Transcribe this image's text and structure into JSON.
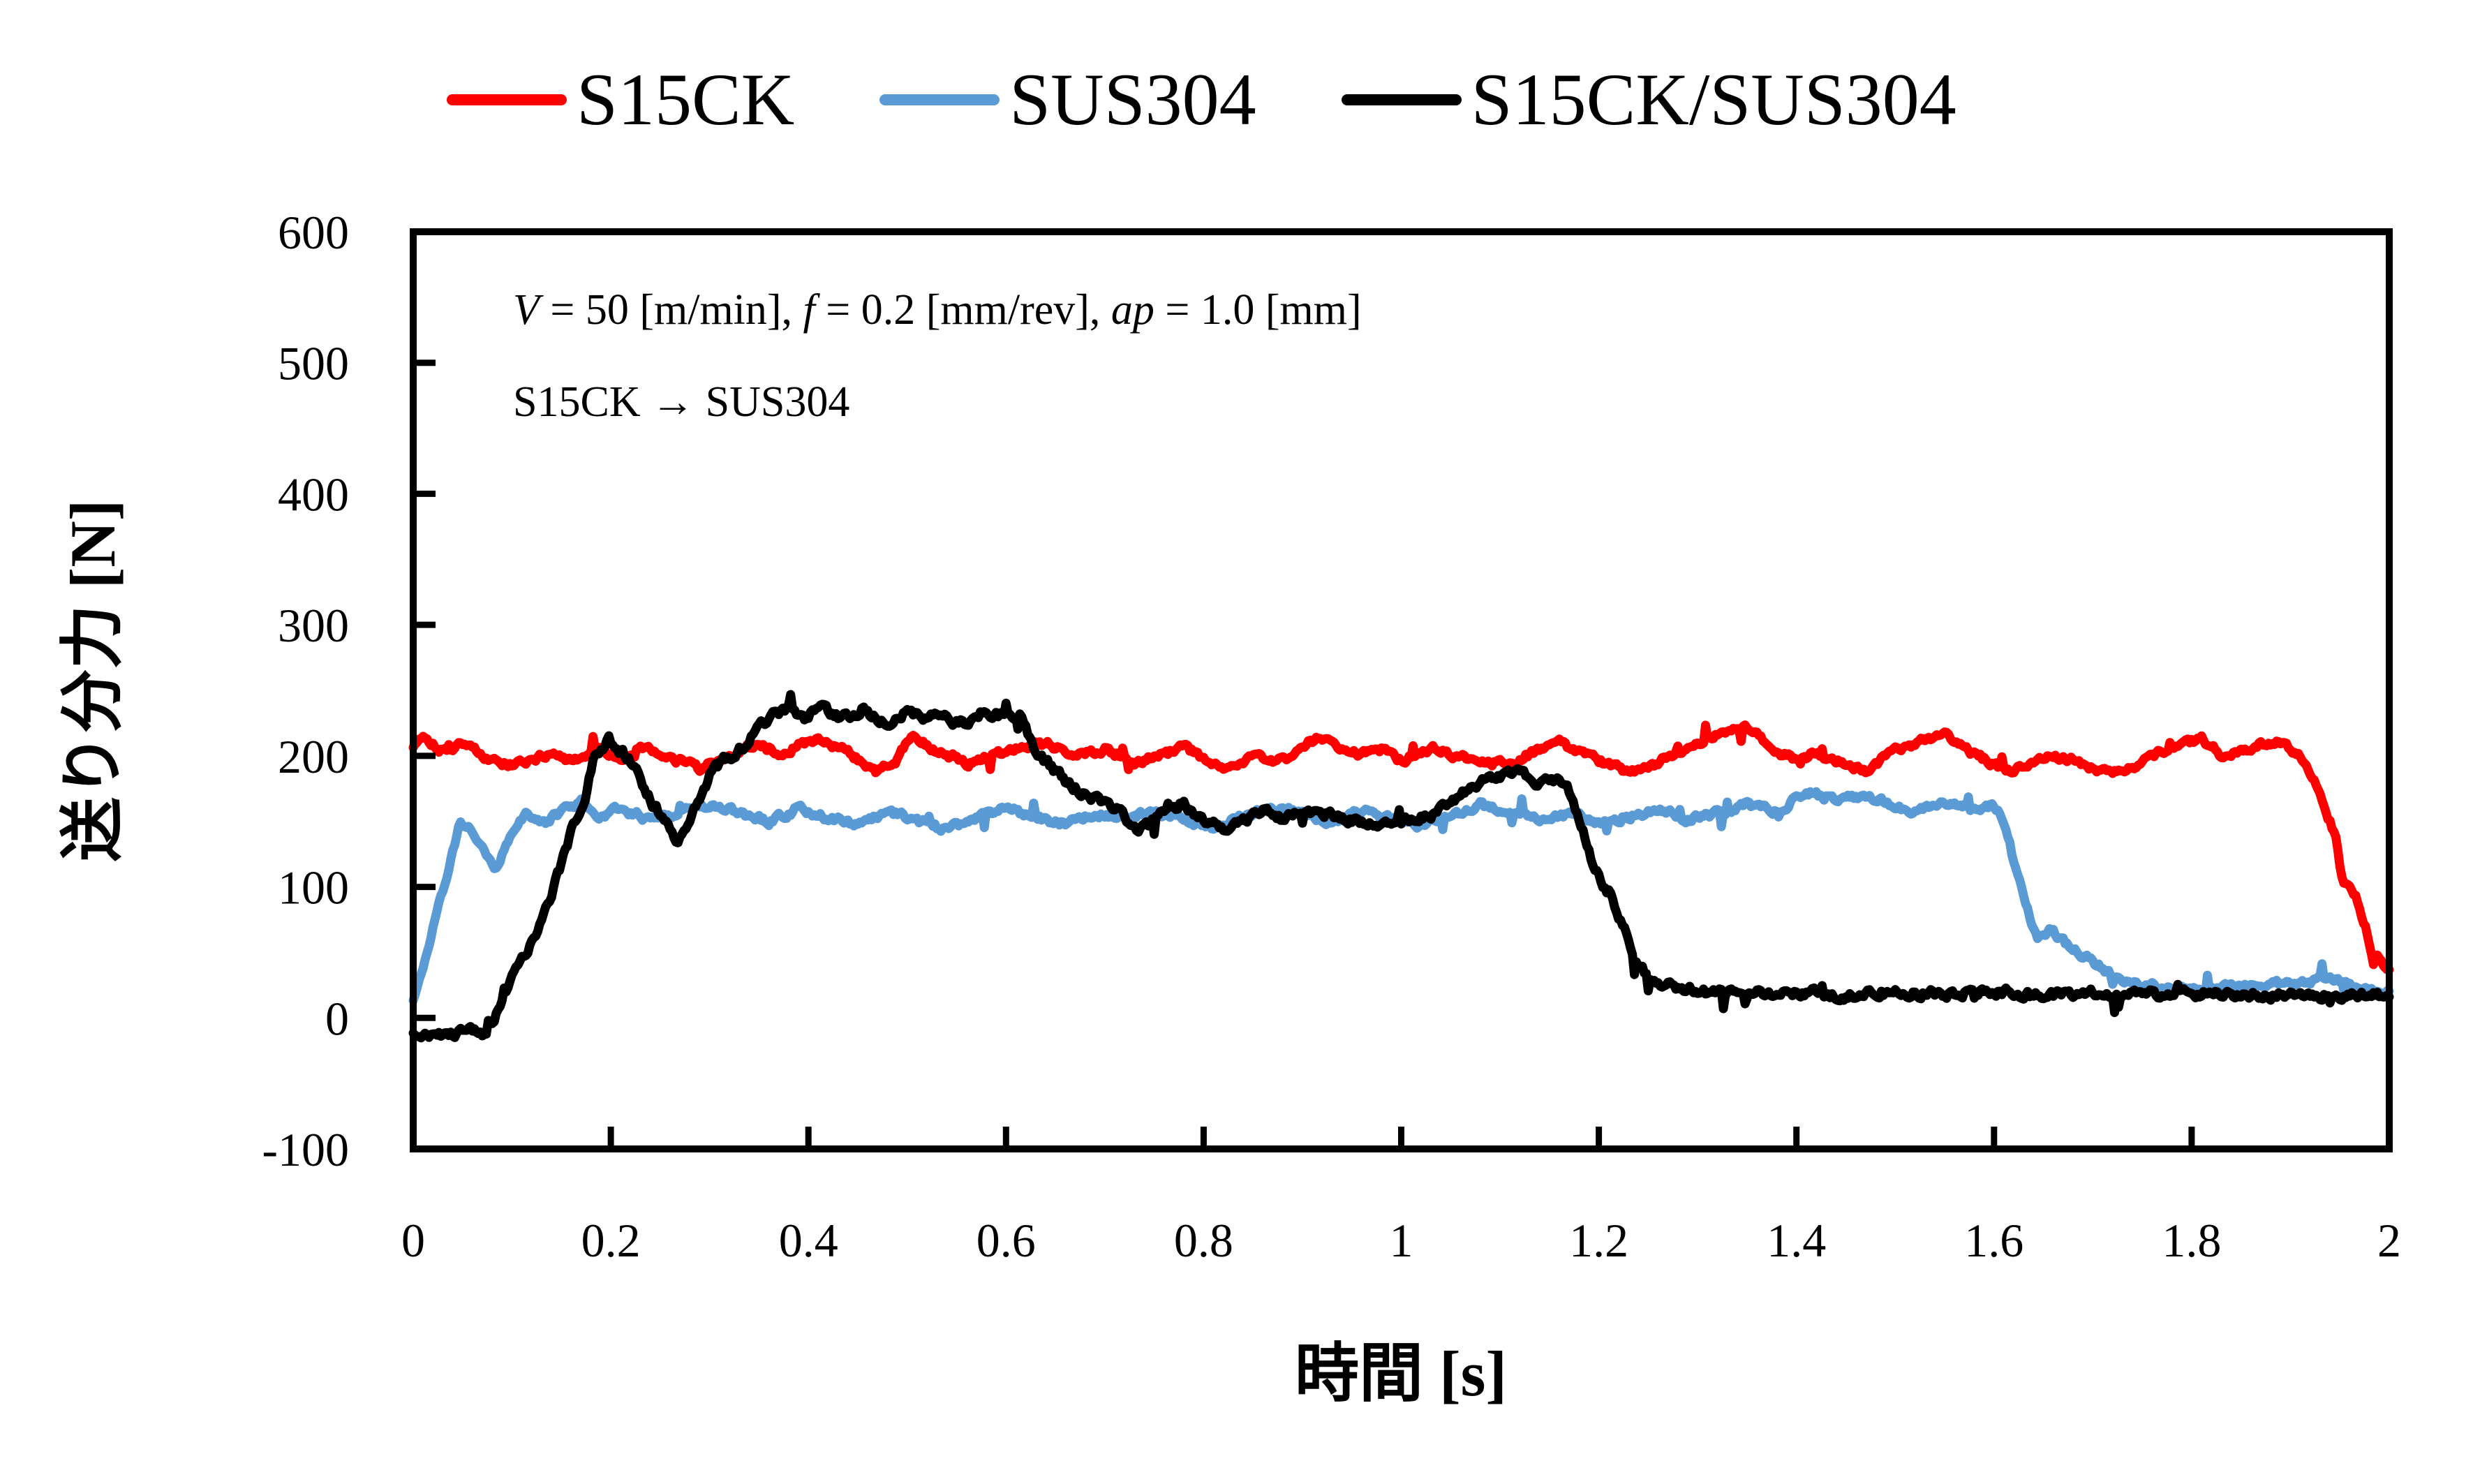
{
  "figure": {
    "background": "#FFFFFF",
    "frame_color": "#000000"
  },
  "legend": {
    "items": [
      {
        "label": "S15CK",
        "color": "#FF0000"
      },
      {
        "label": "SUS304",
        "color": "#5B9BD5"
      },
      {
        "label": "S15CK/SUS304",
        "color": "#000000"
      }
    ]
  },
  "annotation": {
    "v_var": "V",
    "v_rest": " = 50 [m/min], ",
    "f_var": "f",
    "f_rest": " = 0.2 [mm/rev], ",
    "ap_var": "ap",
    "ap_rest": " = 1.0 [mm]",
    "line2": "S15CK → SUS304"
  },
  "axes": {
    "x": {
      "title": "時間 [s]",
      "min": 0,
      "max": 2,
      "tick_values": [
        0,
        0.2,
        0.4,
        0.6,
        0.8,
        1,
        1.2,
        1.4,
        1.6,
        1.8,
        2
      ],
      "tick_labels": [
        "0",
        "0.2",
        "0.4",
        "0.6",
        "0.8",
        "1",
        "1.2",
        "1.4",
        "1.6",
        "1.8",
        "2"
      ]
    },
    "y": {
      "title": "送り分力 [N]",
      "min": -100,
      "max": 600,
      "tick_values": [
        600,
        500,
        400,
        300,
        200,
        100,
        0,
        -100
      ],
      "tick_labels": [
        "600",
        "500",
        "400",
        "300",
        "200",
        "100",
        "0",
        "-100"
      ]
    }
  },
  "chart_data": {
    "type": "line",
    "title": "",
    "xlabel": "時間 [s]",
    "ylabel": "送り分力 [N]",
    "xlim": [
      0,
      2
    ],
    "ylim": [
      -100,
      600
    ],
    "grid": false,
    "legend_position": "top",
    "series": [
      {
        "name": "S15CK",
        "color": "#FF0000",
        "points": [
          [
            0,
            208
          ],
          [
            0.01,
            216
          ],
          [
            0.03,
            204
          ],
          [
            0.05,
            210
          ],
          [
            0.08,
            196
          ],
          [
            0.1,
            192
          ],
          [
            0.13,
            200
          ],
          [
            0.16,
            197
          ],
          [
            0.19,
            205
          ],
          [
            0.21,
            196
          ],
          [
            0.23,
            208
          ],
          [
            0.26,
            199
          ],
          [
            0.29,
            190
          ],
          [
            0.32,
            200
          ],
          [
            0.35,
            210
          ],
          [
            0.37,
            202
          ],
          [
            0.41,
            214
          ],
          [
            0.44,
            203
          ],
          [
            0.47,
            188
          ],
          [
            0.49,
            198
          ],
          [
            0.505,
            216
          ],
          [
            0.53,
            204
          ],
          [
            0.56,
            193
          ],
          [
            0.59,
            202
          ],
          [
            0.62,
            206
          ],
          [
            0.64,
            210
          ],
          [
            0.67,
            199
          ],
          [
            0.7,
            205
          ],
          [
            0.73,
            195
          ],
          [
            0.76,
            201
          ],
          [
            0.78,
            207
          ],
          [
            0.8,
            198
          ],
          [
            0.82,
            191
          ],
          [
            0.85,
            199
          ],
          [
            0.88,
            196
          ],
          [
            0.9,
            208
          ],
          [
            0.92,
            214
          ],
          [
            0.95,
            201
          ],
          [
            0.98,
            205
          ],
          [
            1.0,
            196
          ],
          [
            1.03,
            206
          ],
          [
            1.06,
            199
          ],
          [
            1.09,
            195
          ],
          [
            1.12,
            198
          ],
          [
            1.14,
            204
          ],
          [
            1.16,
            210
          ],
          [
            1.19,
            200
          ],
          [
            1.22,
            190
          ],
          [
            1.24,
            187
          ],
          [
            1.27,
            199
          ],
          [
            1.3,
            210
          ],
          [
            1.33,
            220
          ],
          [
            1.35,
            222
          ],
          [
            1.38,
            204
          ],
          [
            1.4,
            196
          ],
          [
            1.42,
            203
          ],
          [
            1.45,
            193
          ],
          [
            1.47,
            189
          ],
          [
            1.5,
            204
          ],
          [
            1.53,
            212
          ],
          [
            1.55,
            217
          ],
          [
            1.58,
            201
          ],
          [
            1.6,
            194
          ],
          [
            1.62,
            188
          ],
          [
            1.65,
            200
          ],
          [
            1.68,
            197
          ],
          [
            1.71,
            188
          ],
          [
            1.73,
            186
          ],
          [
            1.76,
            200
          ],
          [
            1.79,
            210
          ],
          [
            1.81,
            213
          ],
          [
            1.83,
            201
          ],
          [
            1.85,
            204
          ],
          [
            1.87,
            209
          ],
          [
            1.89,
            211
          ],
          [
            1.913,
            197
          ],
          [
            1.932,
            167
          ],
          [
            1.946,
            138
          ],
          [
            1.953,
            102
          ],
          [
            1.966,
            94
          ],
          [
            1.977,
            67
          ],
          [
            1.984,
            42
          ],
          [
            1.989,
            48
          ],
          [
            1.997,
            36
          ],
          [
            2.0,
            34
          ]
        ]
      },
      {
        "name": "SUS304",
        "color": "#5B9BD5",
        "points": [
          [
            0,
            15
          ],
          [
            0.012,
            45
          ],
          [
            0.022,
            75
          ],
          [
            0.031,
            100
          ],
          [
            0.048,
            150
          ],
          [
            0.06,
            141
          ],
          [
            0.072,
            126
          ],
          [
            0.083,
            110
          ],
          [
            0.095,
            136
          ],
          [
            0.115,
            159
          ],
          [
            0.129,
            147
          ],
          [
            0.15,
            157
          ],
          [
            0.17,
            164
          ],
          [
            0.19,
            154
          ],
          [
            0.21,
            160
          ],
          [
            0.24,
            151
          ],
          [
            0.27,
            158
          ],
          [
            0.3,
            163
          ],
          [
            0.33,
            156
          ],
          [
            0.36,
            150
          ],
          [
            0.39,
            160
          ],
          [
            0.42,
            153
          ],
          [
            0.45,
            147
          ],
          [
            0.48,
            158
          ],
          [
            0.51,
            151
          ],
          [
            0.54,
            143
          ],
          [
            0.57,
            154
          ],
          [
            0.6,
            161
          ],
          [
            0.63,
            153
          ],
          [
            0.66,
            148
          ],
          [
            0.69,
            156
          ],
          [
            0.72,
            151
          ],
          [
            0.75,
            158
          ],
          [
            0.78,
            151
          ],
          [
            0.81,
            145
          ],
          [
            0.84,
            153
          ],
          [
            0.87,
            161
          ],
          [
            0.9,
            156
          ],
          [
            0.93,
            150
          ],
          [
            0.96,
            158
          ],
          [
            0.99,
            153
          ],
          [
            1.02,
            147
          ],
          [
            1.05,
            155
          ],
          [
            1.08,
            163
          ],
          [
            1.11,
            158
          ],
          [
            1.14,
            150
          ],
          [
            1.17,
            156
          ],
          [
            1.2,
            148
          ],
          [
            1.23,
            153
          ],
          [
            1.26,
            159
          ],
          [
            1.29,
            151
          ],
          [
            1.32,
            156
          ],
          [
            1.35,
            163
          ],
          [
            1.38,
            158
          ],
          [
            1.41,
            172
          ],
          [
            1.44,
            167
          ],
          [
            1.47,
            169
          ],
          [
            1.5,
            162
          ],
          [
            1.52,
            157
          ],
          [
            1.55,
            166
          ],
          [
            1.58,
            160
          ],
          [
            1.6,
            162
          ],
          [
            1.608,
            152
          ],
          [
            1.624,
            110
          ],
          [
            1.632,
            88
          ],
          [
            1.644,
            60
          ],
          [
            1.657,
            68
          ],
          [
            1.673,
            57
          ],
          [
            1.685,
            51
          ],
          [
            1.705,
            40
          ],
          [
            1.717,
            34
          ],
          [
            1.737,
            27
          ],
          [
            1.77,
            23
          ],
          [
            1.81,
            22
          ],
          [
            1.85,
            25
          ],
          [
            1.9,
            27
          ],
          [
            1.94,
            30
          ],
          [
            1.97,
            22
          ],
          [
            2.0,
            21
          ]
        ]
      },
      {
        "name": "S15CK/SUS304",
        "color": "#000000",
        "points": [
          [
            0,
            -14
          ],
          [
            0.02,
            -11
          ],
          [
            0.04,
            -13
          ],
          [
            0.06,
            -10
          ],
          [
            0.073,
            -12
          ],
          [
            0.081,
            -4
          ],
          [
            0.09,
            14
          ],
          [
            0.104,
            40
          ],
          [
            0.124,
            62
          ],
          [
            0.14,
            95
          ],
          [
            0.155,
            130
          ],
          [
            0.161,
            144
          ],
          [
            0.166,
            152
          ],
          [
            0.172,
            158
          ],
          [
            0.182,
            196
          ],
          [
            0.198,
            212
          ],
          [
            0.21,
            204
          ],
          [
            0.225,
            192
          ],
          [
            0.24,
            166
          ],
          [
            0.257,
            146
          ],
          [
            0.268,
            134
          ],
          [
            0.285,
            161
          ],
          [
            0.303,
            189
          ],
          [
            0.32,
            200
          ],
          [
            0.336,
            208
          ],
          [
            0.35,
            222
          ],
          [
            0.365,
            231
          ],
          [
            0.38,
            236
          ],
          [
            0.395,
            228
          ],
          [
            0.41,
            237
          ],
          [
            0.425,
            231
          ],
          [
            0.44,
            229
          ],
          [
            0.455,
            236
          ],
          [
            0.47,
            228
          ],
          [
            0.485,
            221
          ],
          [
            0.5,
            238
          ],
          [
            0.515,
            228
          ],
          [
            0.53,
            231
          ],
          [
            0.545,
            227
          ],
          [
            0.56,
            224
          ],
          [
            0.575,
            234
          ],
          [
            0.59,
            229
          ],
          [
            0.605,
            232
          ],
          [
            0.617,
            227
          ],
          [
            0.63,
            203
          ],
          [
            0.645,
            192
          ],
          [
            0.66,
            182
          ],
          [
            0.68,
            170
          ],
          [
            0.7,
            165
          ],
          [
            0.715,
            159
          ],
          [
            0.733,
            142
          ],
          [
            0.75,
            151
          ],
          [
            0.765,
            158
          ],
          [
            0.779,
            164
          ],
          [
            0.8,
            151
          ],
          [
            0.819,
            145
          ],
          [
            0.84,
            152
          ],
          [
            0.86,
            158
          ],
          [
            0.88,
            151
          ],
          [
            0.9,
            157
          ],
          [
            0.924,
            155
          ],
          [
            0.95,
            151
          ],
          [
            0.98,
            148
          ],
          [
            1.01,
            151
          ],
          [
            1.034,
            156
          ],
          [
            1.06,
            170
          ],
          [
            1.09,
            183
          ],
          [
            1.121,
            190
          ],
          [
            1.135,
            181
          ],
          [
            1.143,
            178
          ],
          [
            1.16,
            184
          ],
          [
            1.172,
            170
          ],
          [
            1.185,
            140
          ],
          [
            1.194,
            116
          ],
          [
            1.205,
            101
          ],
          [
            1.212,
            95
          ],
          [
            1.225,
            70
          ],
          [
            1.237,
            42
          ],
          [
            1.259,
            26
          ],
          [
            1.3,
            20
          ],
          [
            1.35,
            18
          ],
          [
            1.4,
            20
          ],
          [
            1.45,
            17
          ],
          [
            1.5,
            19
          ],
          [
            1.55,
            18
          ],
          [
            1.6,
            20
          ],
          [
            1.65,
            17
          ],
          [
            1.7,
            19
          ],
          [
            1.75,
            18
          ],
          [
            1.8,
            19
          ],
          [
            1.85,
            17
          ],
          [
            1.9,
            18
          ],
          [
            1.95,
            17
          ],
          [
            2.0,
            18
          ]
        ]
      }
    ]
  }
}
